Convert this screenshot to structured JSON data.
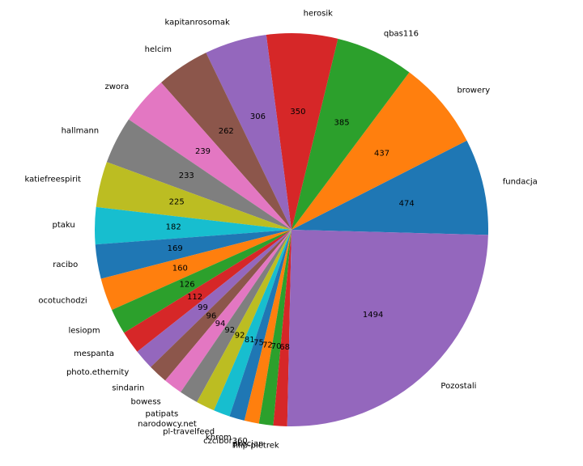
{
  "chart_data": {
    "type": "pie",
    "title": "",
    "start_angle_deg": -1.5,
    "direction": "counterclockwise",
    "explode_index": 28,
    "slices": [
      {
        "label": "fundacja",
        "value": 474,
        "color": "#1f77b4"
      },
      {
        "label": "browery",
        "value": 437,
        "color": "#ff7f0e"
      },
      {
        "label": "qbas116",
        "value": 385,
        "color": "#2ca02c"
      },
      {
        "label": "herosik",
        "value": 350,
        "color": "#d62728"
      },
      {
        "label": "kapitanrosomak",
        "value": 306,
        "color": "#9467bd"
      },
      {
        "label": "helcim",
        "value": 262,
        "color": "#8c564b"
      },
      {
        "label": "zwora",
        "value": 239,
        "color": "#e377c2"
      },
      {
        "label": "hallmann",
        "value": 233,
        "color": "#7f7f7f"
      },
      {
        "label": "katiefreespirit",
        "value": 225,
        "color": "#bcbd22"
      },
      {
        "label": "ptaku",
        "value": 182,
        "color": "#17becf"
      },
      {
        "label": "racibo",
        "value": 169,
        "color": "#1f77b4"
      },
      {
        "label": "ocotuchodzi",
        "value": 160,
        "color": "#ff7f0e"
      },
      {
        "label": "lesiopm",
        "value": 126,
        "color": "#2ca02c"
      },
      {
        "label": "mespanta",
        "value": 112,
        "color": "#d62728"
      },
      {
        "label": "photo.ethernity",
        "value": 99,
        "color": "#9467bd"
      },
      {
        "label": "sindarin",
        "value": 96,
        "color": "#8c564b"
      },
      {
        "label": "bowess",
        "value": 94,
        "color": "#e377c2"
      },
      {
        "label": "patipats",
        "value": 92,
        "color": "#7f7f7f"
      },
      {
        "label": "narodowcy.net",
        "value": 92,
        "color": "#bcbd22"
      },
      {
        "label": "pl-travelfeed",
        "value": 81,
        "color": "#17becf"
      },
      {
        "label": "khrom",
        "value": 75,
        "color": "#1f77b4"
      },
      {
        "label": "czcibor360",
        "value": 72,
        "color": "#ff7f0e"
      },
      {
        "label": "pkocjan",
        "value": 70,
        "color": "#2ca02c"
      },
      {
        "label": "filip-pietrek",
        "value": 68,
        "color": "#d62728"
      },
      {
        "label": "Pozostali",
        "value": 1494,
        "color": "#9467bd"
      }
    ]
  }
}
